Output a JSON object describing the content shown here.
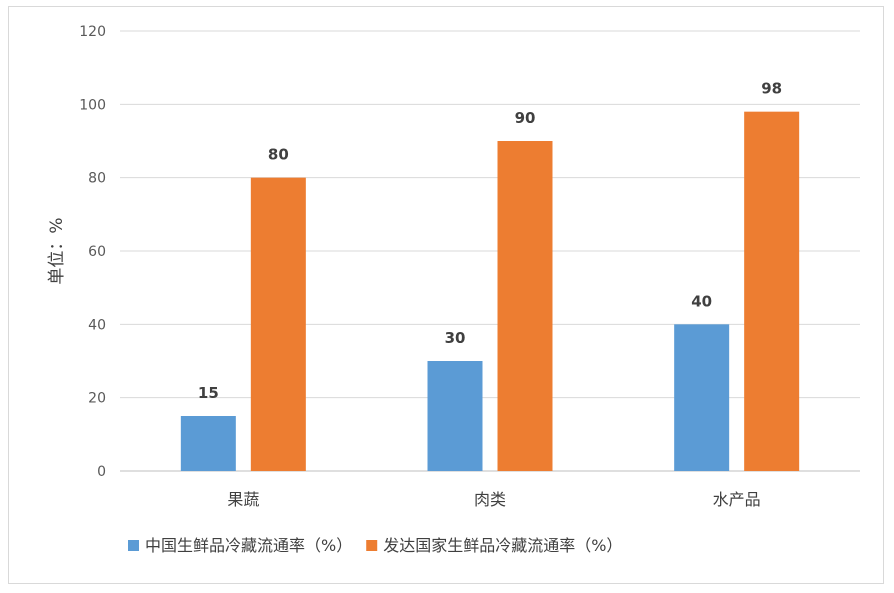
{
  "chart_data": {
    "type": "bar",
    "title": "",
    "xlabel": "",
    "ylabel": "单位：%",
    "categories": [
      "果蔬",
      "肉类",
      "水产品"
    ],
    "series": [
      {
        "name": "中国生鲜品冷藏流通率（%）",
        "values": [
          15,
          30,
          40
        ],
        "color": "#5b9bd5"
      },
      {
        "name": "发达国家生鲜品冷藏流通率（%）",
        "values": [
          80,
          90,
          98
        ],
        "color": "#ed7d31"
      }
    ],
    "ylim": [
      0,
      120
    ],
    "yticks": [
      0,
      20,
      40,
      60,
      80,
      100,
      120
    ],
    "grid": true,
    "legend": "bottom"
  }
}
